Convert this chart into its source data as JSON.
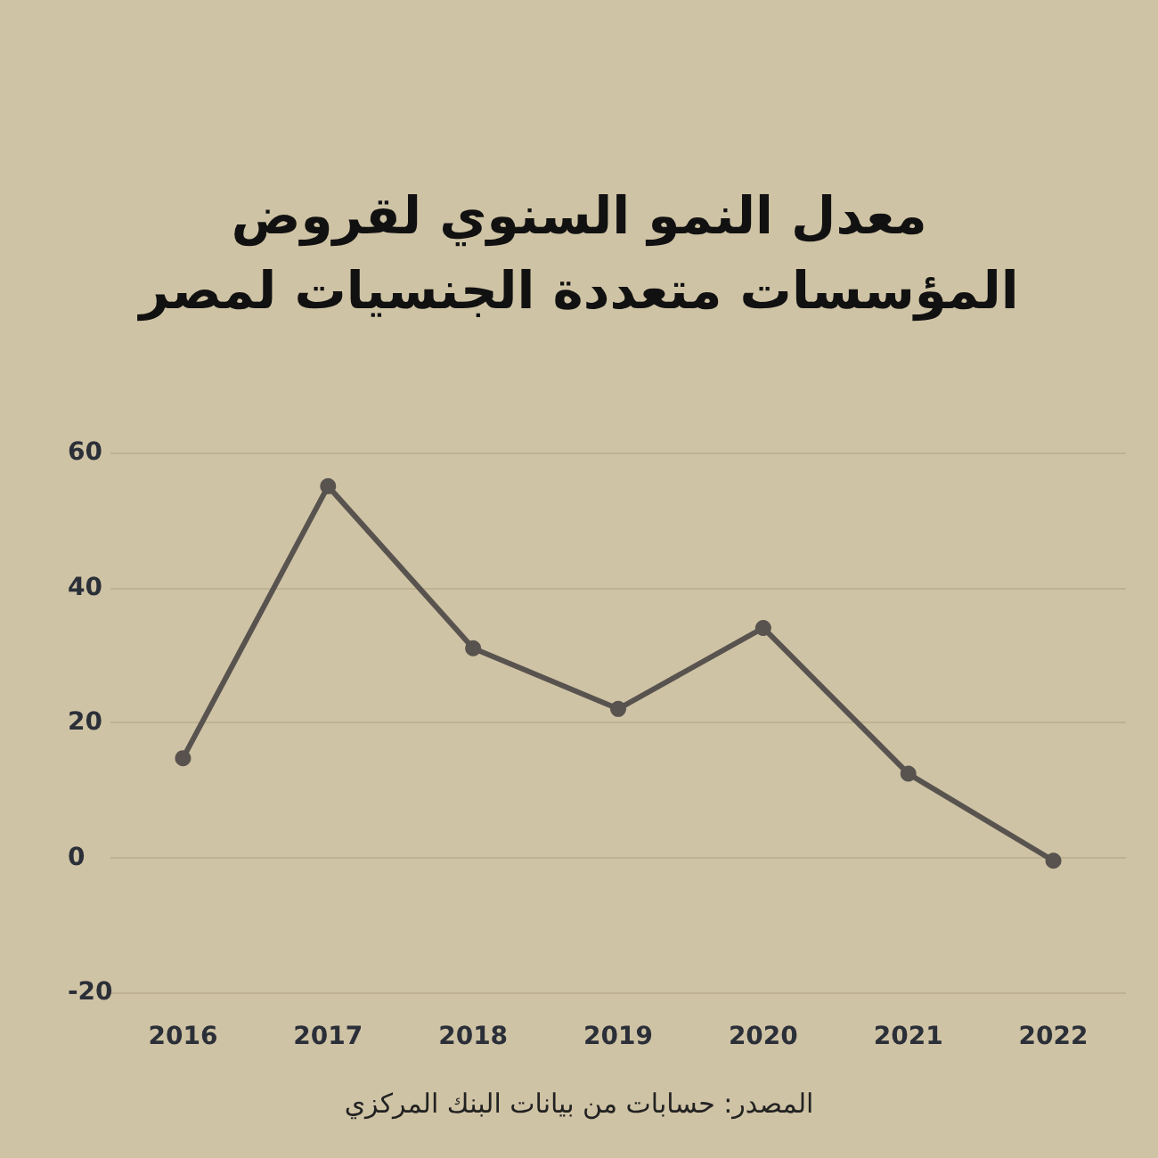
{
  "chart_data": {
    "type": "line",
    "title": "معدل النمو السنوي لقروض\nالمؤسسات متعددة الجنسيات لمصر",
    "categories": [
      "2016",
      "2017",
      "2018",
      "2019",
      "2020",
      "2021",
      "2022"
    ],
    "series": [
      {
        "color": "#58534f",
        "values": [
          14.7,
          55,
          31,
          22,
          34,
          12.4,
          -0.5
        ]
      }
    ],
    "ylim": [
      -20,
      60
    ],
    "yticks": [
      -20,
      0,
      20,
      40,
      60
    ],
    "grid": "y",
    "marker": "circle",
    "line_style": "solid",
    "annotations": [
      "المصدر: حسابات من بيانات البنك المركزي"
    ]
  }
}
